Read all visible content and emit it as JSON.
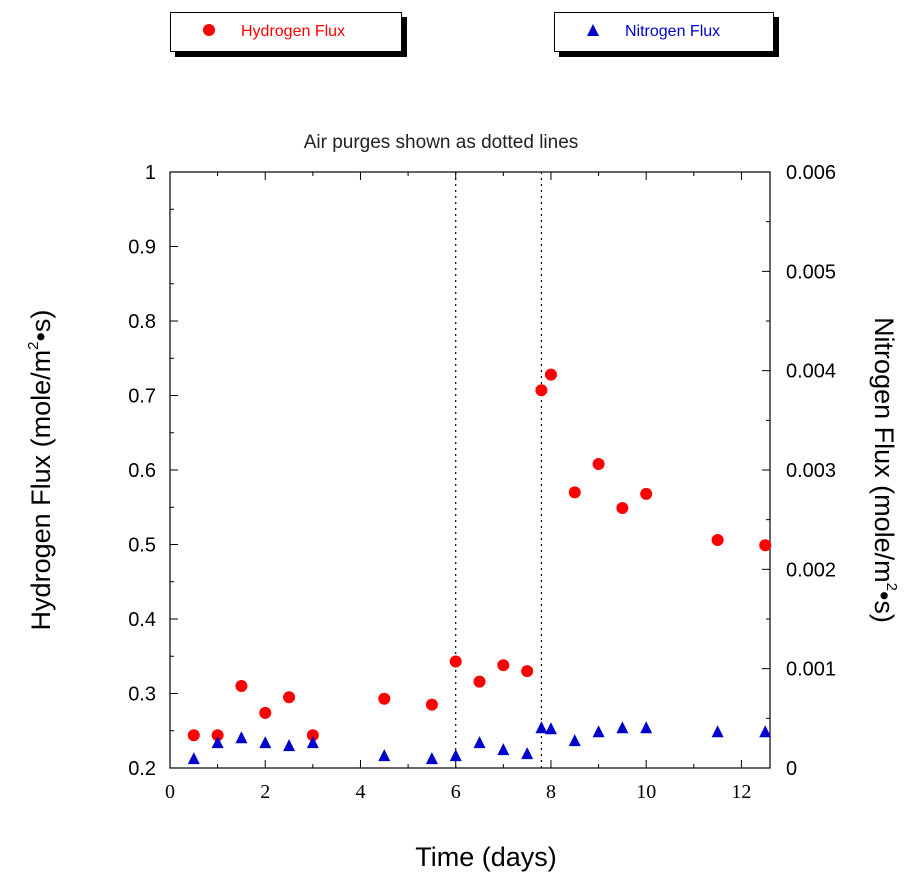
{
  "legend": {
    "hydrogen_label": "Hydrogen Flux",
    "nitrogen_label": "Nitrogen Flux"
  },
  "chart_data": {
    "type": "scatter",
    "title": "",
    "subtitle": "Air purges shown as dotted lines",
    "xlabel": "Time (days)",
    "ylabel_left": "Hydrogen Flux (mole/m²•s)",
    "ylabel_right": "Nitrogen Flux (mole/m²•s)",
    "xlim": [
      0,
      12.6
    ],
    "ylim_left": [
      0.2,
      1.0
    ],
    "ylim_right": [
      0,
      0.006
    ],
    "x_ticks": [
      "0",
      "2",
      "4",
      "6",
      "8",
      "10",
      "12"
    ],
    "y_left_ticks": [
      "0.2",
      "0.3",
      "0.4",
      "0.5",
      "0.6",
      "0.7",
      "0.8",
      "0.9",
      "1"
    ],
    "y_right_ticks": [
      "0",
      "0.001",
      "0.002",
      "0.003",
      "0.004",
      "0.005",
      "0.006"
    ],
    "vlines": [
      6,
      7.8
    ],
    "grid": false,
    "legend_position": "top",
    "series": [
      {
        "name": "Hydrogen Flux",
        "axis": "left",
        "color": "#ff0000",
        "marker": "circle",
        "x": [
          0.5,
          1.0,
          1.5,
          2.0,
          2.5,
          3.0,
          4.5,
          5.5,
          6.0,
          6.5,
          7.0,
          7.5,
          7.8,
          8.0,
          8.5,
          9.0,
          9.5,
          10.0,
          11.5,
          12.5
        ],
        "y": [
          0.244,
          0.244,
          0.31,
          0.274,
          0.295,
          0.244,
          0.293,
          0.285,
          0.343,
          0.316,
          0.338,
          0.33,
          0.707,
          0.728,
          0.57,
          0.608,
          0.549,
          0.568,
          0.506,
          0.499
        ]
      },
      {
        "name": "Nitrogen Flux",
        "axis": "right",
        "color": "#0000cc",
        "marker": "triangle",
        "x": [
          0.5,
          1.0,
          1.5,
          2.0,
          2.5,
          3.0,
          4.5,
          5.5,
          6.0,
          6.5,
          7.0,
          7.5,
          7.8,
          8.0,
          8.5,
          9.0,
          9.5,
          10.0,
          11.5,
          12.5
        ],
        "y": [
          0.0001,
          0.00026,
          0.00031,
          0.00026,
          0.00023,
          0.00026,
          0.00013,
          0.0001,
          0.00013,
          0.00026,
          0.00019,
          0.00015,
          0.00041,
          0.0004,
          0.00028,
          0.00037,
          0.00041,
          0.00041,
          0.00037,
          0.00037
        ]
      }
    ]
  }
}
